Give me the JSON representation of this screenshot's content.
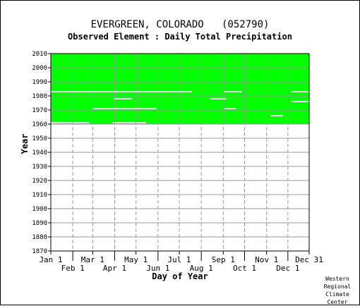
{
  "title": "EVERGREEN, COLORADO   (052790)",
  "subtitle": "Observed Element : Daily Total Precipitation",
  "credit": [
    "Western",
    "Regional",
    "Climate",
    "Center"
  ],
  "colors": {
    "present": "#00ff00",
    "missing": "#ffffff",
    "grid": "#999999"
  },
  "chart_data": {
    "type": "heatmap",
    "xlabel": "Day of Year",
    "ylabel": "Year",
    "xlim": [
      1,
      365
    ],
    "ylim": [
      1870,
      2010
    ],
    "y_ticks": [
      1870,
      1880,
      1890,
      1900,
      1910,
      1920,
      1930,
      1940,
      1950,
      1960,
      1970,
      1980,
      1990,
      2000,
      2010
    ],
    "x_ticks_top_row": [
      {
        "label": "Jan 1",
        "day": 1
      },
      {
        "label": "Mar 1",
        "day": 60
      },
      {
        "label": "May 1",
        "day": 121
      },
      {
        "label": "Jul 1",
        "day": 182
      },
      {
        "label": "Sep 1",
        "day": 244
      },
      {
        "label": "Nov 1",
        "day": 305
      },
      {
        "label": "Dec 31",
        "day": 365
      }
    ],
    "x_ticks_bottom_row": [
      {
        "label": "Feb 1",
        "day": 32
      },
      {
        "label": "Apr 1",
        "day": 91
      },
      {
        "label": "Jun 1",
        "day": 152
      },
      {
        "label": "Aug 1",
        "day": 213
      },
      {
        "label": "Oct 1",
        "day": 274
      },
      {
        "label": "Dec 1",
        "day": 335
      }
    ],
    "record_period": {
      "start_year": 1960,
      "end_year": 2010
    },
    "missing_segments": [
      {
        "year": 1983,
        "start_day": 1,
        "end_day": 200
      },
      {
        "year": 1983,
        "start_day": 245,
        "end_day": 270
      },
      {
        "year": 1983,
        "start_day": 340,
        "end_day": 365
      },
      {
        "year": 1978,
        "start_day": 90,
        "end_day": 115
      },
      {
        "year": 1978,
        "start_day": 225,
        "end_day": 248
      },
      {
        "year": 1976,
        "start_day": 340,
        "end_day": 365
      },
      {
        "year": 1971,
        "start_day": 60,
        "end_day": 150
      },
      {
        "year": 1971,
        "start_day": 245,
        "end_day": 262
      },
      {
        "year": 1966,
        "start_day": 310,
        "end_day": 328
      },
      {
        "year": 1961,
        "start_day": 1,
        "end_day": 55
      },
      {
        "year": 1961,
        "start_day": 88,
        "end_day": 135
      }
    ]
  }
}
